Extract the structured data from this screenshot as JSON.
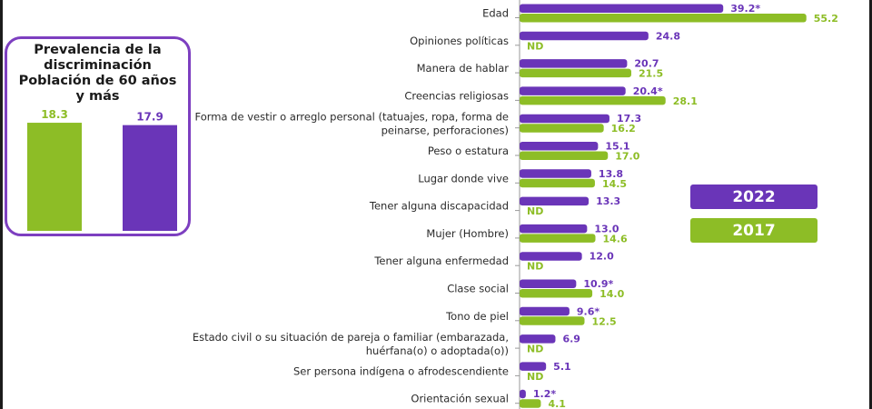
{
  "chart_data": [
    {
      "type": "bar",
      "orientation": "horizontal",
      "categories": [
        "Edad",
        "Opiniones políticas",
        "Manera de hablar",
        "Creencias religiosas",
        [
          "Forma de vestir o arreglo personal (tatuajes, ropa, forma de",
          "peinarse, perforaciones)"
        ],
        "Peso o estatura",
        "Lugar donde vive",
        "Tener alguna discapacidad",
        "Mujer (Hombre)",
        "Tener alguna enfermedad",
        "Clase social",
        "Tono de piel",
        [
          "Estado civil o su situación de pareja o familiar (embarazada,",
          "huérfana(o) o adoptada(o))"
        ],
        "Ser persona indígena o afrodescendiente",
        "Orientación sexual"
      ],
      "series": [
        {
          "name": "2022",
          "color": "#6a35b8",
          "values": [
            39.2,
            24.8,
            20.7,
            20.4,
            17.3,
            15.1,
            13.8,
            13.3,
            13.0,
            12.0,
            10.9,
            9.6,
            6.9,
            5.1,
            1.2
          ],
          "labels": [
            "39.2*",
            "24.8",
            "20.7",
            "20.4*",
            "17.3",
            "15.1",
            "13.8",
            "13.3",
            "13.0",
            "12.0",
            "10.9*",
            "9.6*",
            "6.9",
            "5.1",
            "1.2*"
          ]
        },
        {
          "name": "2017",
          "color": "#8dbd26",
          "values": [
            55.2,
            null,
            21.5,
            28.1,
            16.2,
            17.0,
            14.5,
            null,
            14.6,
            null,
            14.0,
            12.5,
            null,
            null,
            4.1
          ],
          "labels": [
            "55.2",
            "ND",
            "21.5",
            "28.1",
            "16.2",
            "17.0",
            "14.5",
            "ND",
            "14.6",
            "ND",
            "14.0",
            "12.5",
            "ND",
            "ND",
            "4.1"
          ]
        }
      ],
      "legend": {
        "items": [
          "2022",
          "2017"
        ],
        "position": "right"
      }
    },
    {
      "type": "bar",
      "title": [
        "Prevalencia de la",
        "discriminación",
        "Población de 60 años",
        "y más"
      ],
      "series": [
        {
          "name": "2017",
          "color": "#8dbd26",
          "values": [
            18.3
          ],
          "labels": [
            "18.3"
          ]
        },
        {
          "name": "2022",
          "color": "#6a35b8",
          "values": [
            17.9
          ],
          "labels": [
            "17.9"
          ]
        }
      ]
    }
  ]
}
